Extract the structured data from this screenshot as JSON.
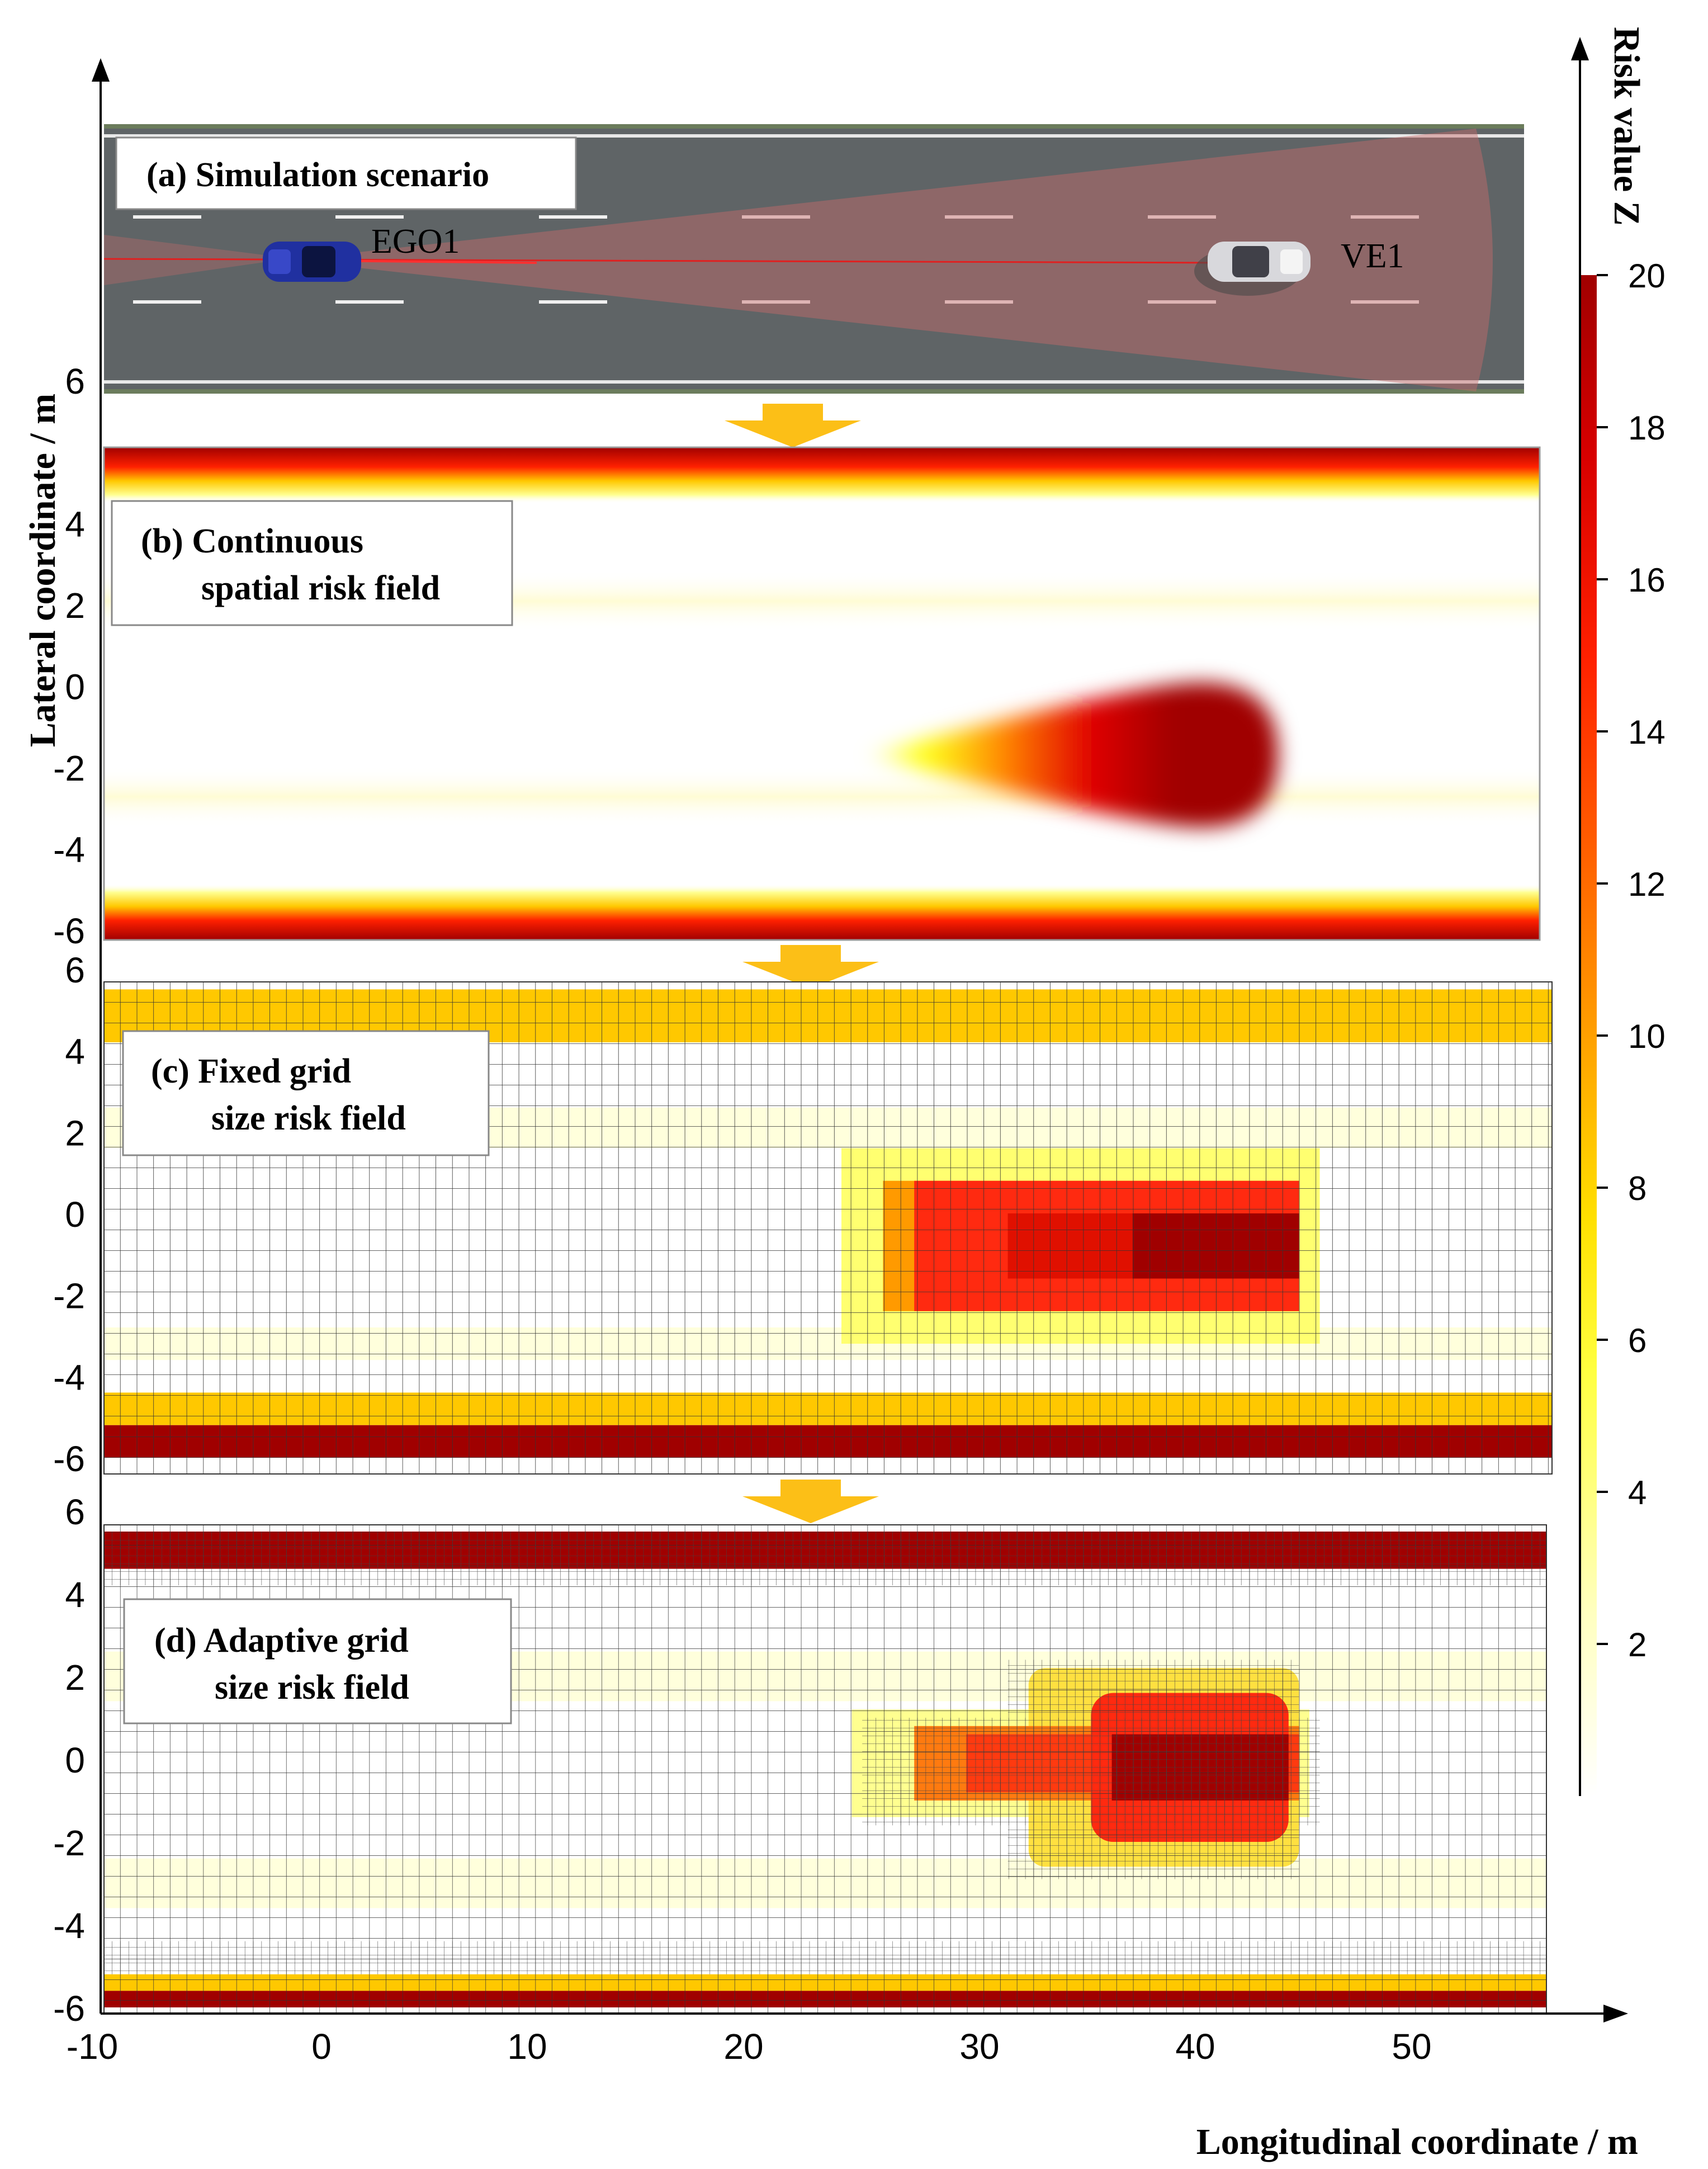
{
  "y_axis": {
    "label": "Lateral coordinate / m",
    "a_tick": "6",
    "ticks_b": [
      "4",
      "2",
      "0",
      "-2",
      "-4",
      "-6"
    ],
    "ticks_c": [
      "6",
      "4",
      "2",
      "0",
      "-2",
      "-4",
      "-6"
    ],
    "ticks_d": [
      "6",
      "4",
      "2",
      "0",
      "-2",
      "-4",
      "-6"
    ]
  },
  "x_axis": {
    "label": "Longitudinal coordinate / m",
    "ticks": [
      "-10",
      "0",
      "10",
      "20",
      "30",
      "40",
      "50"
    ]
  },
  "colorbar": {
    "title": "Risk value Z",
    "ticks": [
      "20",
      "18",
      "16",
      "14",
      "12",
      "10",
      "8",
      "6",
      "4",
      "2"
    ],
    "colors": [
      "#ffffff",
      "#ffffc8",
      "#ffff80",
      "#ffff00",
      "#ffc800",
      "#ff9600",
      "#ff6000",
      "#ff2000",
      "#e00000",
      "#a00000"
    ]
  },
  "panels": {
    "a": {
      "line1": "(a) Simulation scenario",
      "ego_label": "EGO1",
      "ve_label": "VE1"
    },
    "b": {
      "line1": "(b) Continuous",
      "line2": "spatial risk field"
    },
    "c": {
      "line1": "(c) Fixed grid",
      "line2": "size risk field"
    },
    "d": {
      "line1": "(d) Adaptive grid",
      "line2": "size risk field"
    }
  },
  "chart_data": {
    "type": "heatmap",
    "xlim": [
      -10,
      56
    ],
    "ylim": [
      -6,
      6
    ],
    "zlim": [
      0,
      20
    ],
    "road_boundaries": [
      -6,
      5.5
    ],
    "hazard": {
      "front_x": 46,
      "tail_x": 26,
      "center_y": -1.7,
      "half_width": 1.8,
      "peak": 20
    },
    "fixed_grid": {
      "cell_size": 1.0,
      "boundary_rows": [
        {
          "y0": 4.2,
          "y1": 5.5,
          "value": 8
        },
        {
          "y0": -5.2,
          "y1": -4.4,
          "value": 8
        },
        {
          "y0": -6,
          "y1": -5.2,
          "value": 20
        }
      ],
      "hazard_rows": [
        {
          "y0": 0.8,
          "y1": 1.6,
          "value": 3
        },
        {
          "y0": -2.4,
          "y1": 0.8,
          "value": 14
        },
        {
          "y0": -3.2,
          "y1": -2.4,
          "value": 3
        }
      ]
    },
    "adaptive_grid": {
      "boundary_rows": [
        {
          "y0": 4.6,
          "y1": 5.5,
          "value": 20
        },
        {
          "y0": -5.6,
          "y1": -5.2,
          "value": 8
        },
        {
          "y0": -6,
          "y1": -5.6,
          "value": 20
        }
      ]
    }
  }
}
